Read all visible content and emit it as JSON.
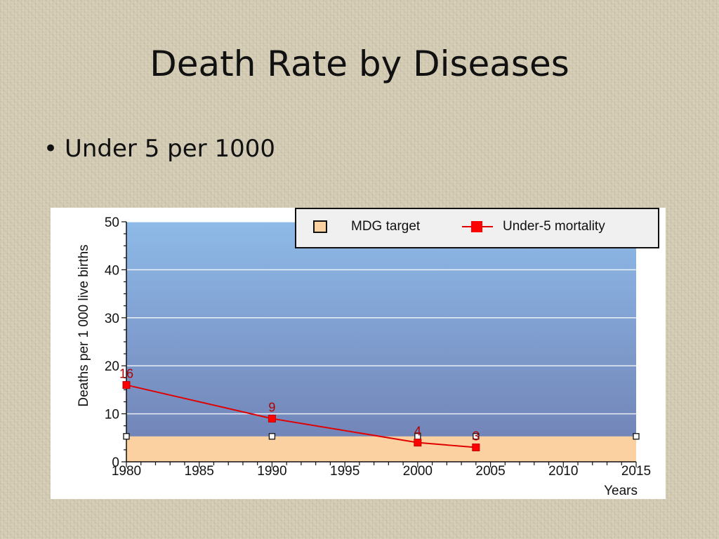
{
  "slide": {
    "title": "Death Rate by Diseases",
    "bullet": "Under 5 per 1000"
  },
  "colors": {
    "mdg_fill": "#fbd1a2",
    "under5_line": "#e00000",
    "plot_top": "#8ebae8",
    "plot_bottom": "#6f7fb3",
    "data_label": "#b00000"
  },
  "chart_data": {
    "type": "line",
    "xlabel": "Years",
    "ylabel": "Deaths per 1 000 live births",
    "xlim": [
      1980,
      2015
    ],
    "ylim": [
      0,
      50
    ],
    "x_ticks": [
      1980,
      1985,
      1990,
      1995,
      2000,
      2005,
      2010,
      2015
    ],
    "y_ticks": [
      0,
      10,
      20,
      30,
      40,
      50
    ],
    "grid": "horizontal",
    "legend_position": "top-right",
    "legend": [
      "MDG target",
      "Under-5 mortality"
    ],
    "mdg_target": {
      "name": "MDG target",
      "value": 5.3,
      "x": [
        1980,
        1990,
        2000,
        2004,
        2015
      ]
    },
    "series": [
      {
        "name": "Under-5 mortality",
        "x": [
          1980,
          1990,
          2000,
          2004
        ],
        "values": [
          16,
          9,
          4,
          3
        ],
        "labels": [
          "16",
          "9",
          "4",
          "3"
        ]
      }
    ]
  }
}
